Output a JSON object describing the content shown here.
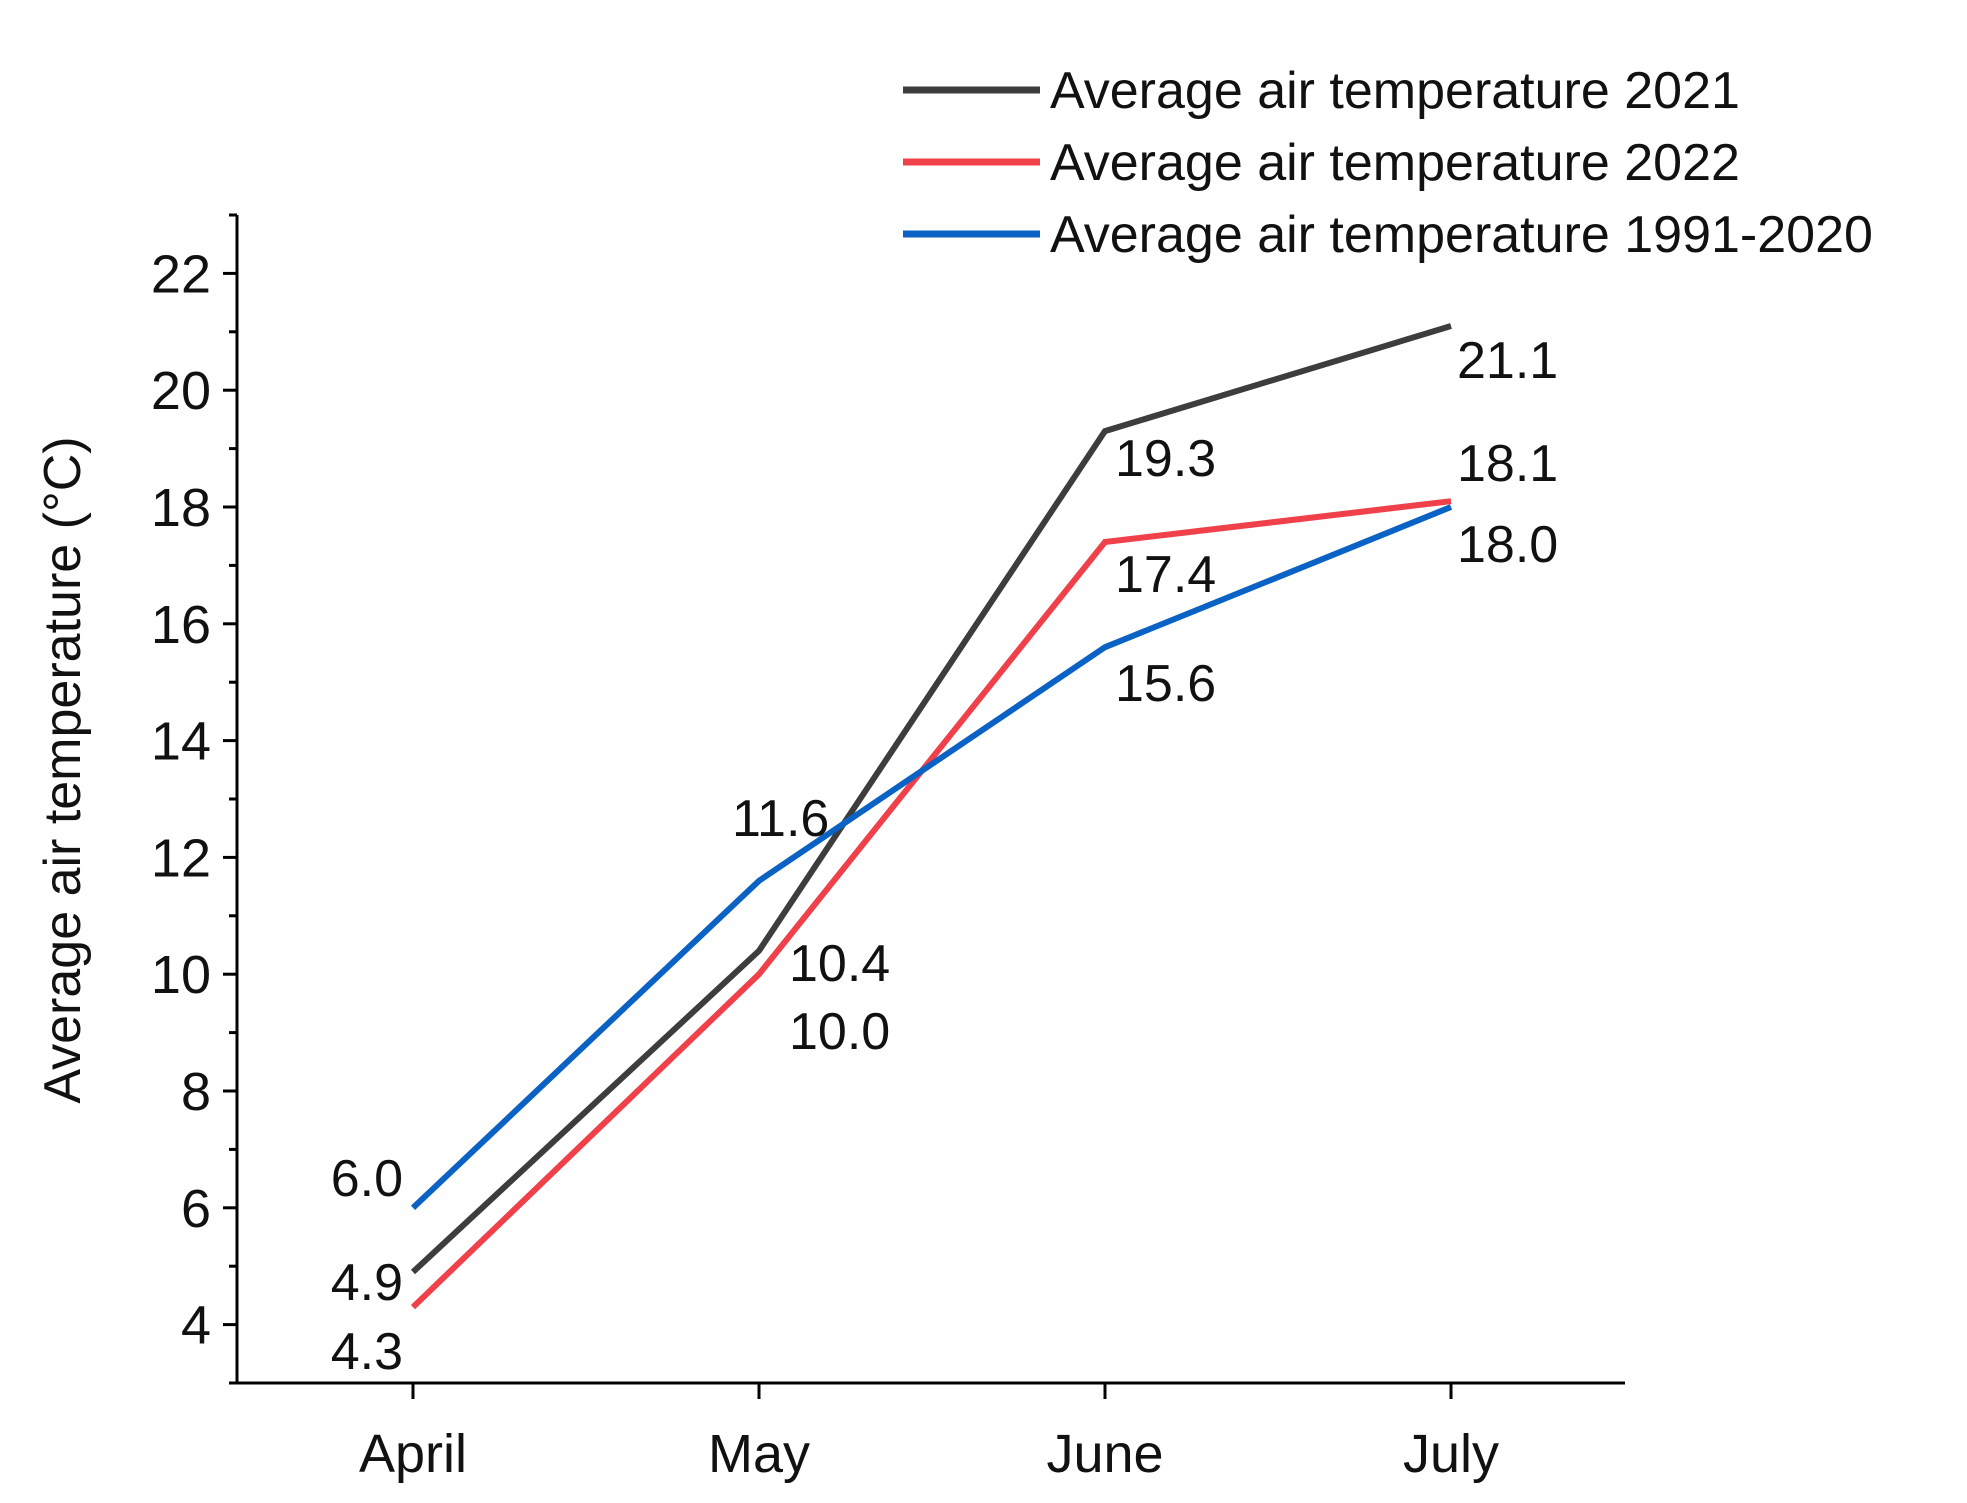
{
  "chart_data": {
    "type": "line",
    "title": "",
    "xlabel": "",
    "ylabel": "Average air temperature (°C)",
    "categories": [
      "April",
      "May",
      "June",
      "July"
    ],
    "ylim": [
      3,
      23
    ],
    "yticks": [
      4,
      6,
      8,
      10,
      12,
      14,
      16,
      18,
      20,
      22
    ],
    "yticks_labels": [
      "4",
      "6",
      "8",
      "10",
      "12",
      "14",
      "16",
      "18",
      "20",
      "22"
    ],
    "grid": false,
    "legend_position": "top-right",
    "series": [
      {
        "name": "Average air temperature 2021",
        "color": "#3d3d3d",
        "values": [
          4.9,
          10.4,
          19.3,
          21.1
        ],
        "labels": [
          "4.9",
          "10.4",
          "19.3",
          "21.1"
        ]
      },
      {
        "name": "Average air temperature 2022",
        "color": "#f0404a",
        "values": [
          4.3,
          10.0,
          17.4,
          18.1
        ],
        "labels": [
          "4.3",
          "10.0",
          "17.4",
          "18.1"
        ]
      },
      {
        "name": "Average air temperature 1991-2020",
        "color": "#0a62c4",
        "values": [
          6.0,
          11.6,
          15.6,
          18.0
        ],
        "labels": [
          "6.0",
          "11.6",
          "15.6",
          "18.0"
        ]
      }
    ]
  }
}
